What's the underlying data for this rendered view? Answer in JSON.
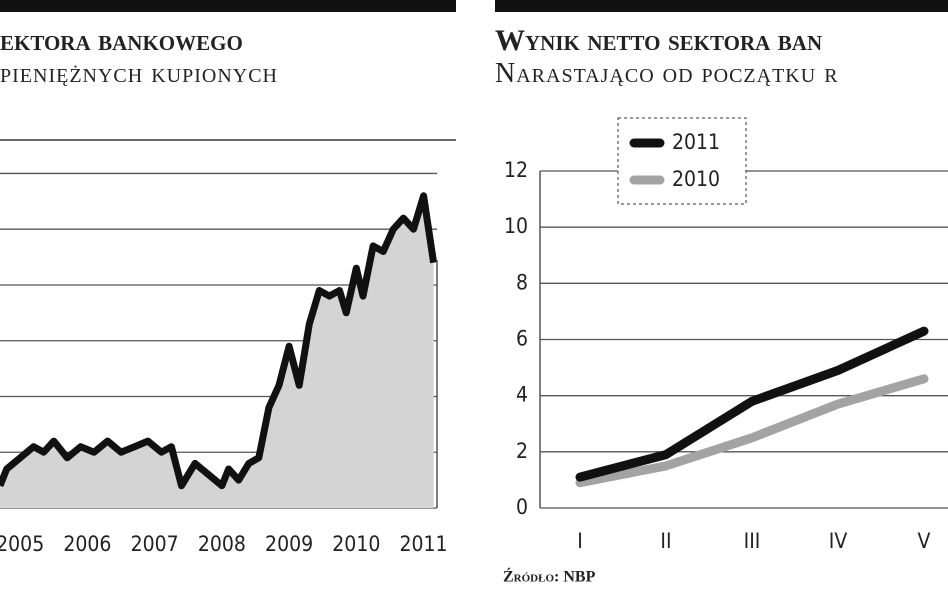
{
  "chart_data": [
    {
      "type": "area",
      "title": "ektora bankowego",
      "subtitle": "pieniężnych kupionych",
      "x": [
        2004.7,
        2004.8,
        2005.0,
        2005.2,
        2005.35,
        2005.5,
        2005.7,
        2005.9,
        2006.1,
        2006.3,
        2006.5,
        2006.7,
        2006.9,
        2007.1,
        2007.25,
        2007.4,
        2007.6,
        2007.8,
        2008.0,
        2008.1,
        2008.25,
        2008.4,
        2008.55,
        2008.7,
        2008.85,
        2009.0,
        2009.15,
        2009.3,
        2009.45,
        2009.6,
        2009.75,
        2009.85,
        2010.0,
        2010.1,
        2010.25,
        2010.4,
        2010.55,
        2010.7,
        2010.85,
        2011.0,
        2011.15
      ],
      "values": [
        0.4,
        0.7,
        0.9,
        1.1,
        1.0,
        1.2,
        0.9,
        1.1,
        1.0,
        1.2,
        1.0,
        1.1,
        1.2,
        1.0,
        1.1,
        0.4,
        0.8,
        0.6,
        0.4,
        0.7,
        0.5,
        0.8,
        0.9,
        1.8,
        2.2,
        2.9,
        2.2,
        3.3,
        3.9,
        3.8,
        3.9,
        3.5,
        4.3,
        3.8,
        4.7,
        4.6,
        5.0,
        5.2,
        5.0,
        5.6,
        4.4
      ],
      "color": "#111111",
      "fill": "#d4d4d4",
      "xlim": [
        2004.7,
        2011.2
      ],
      "xticks": [
        2005,
        2006,
        2007,
        2008,
        2009,
        2010,
        2011
      ],
      "ylim": [
        0,
        6.6
      ],
      "yticks": [
        0,
        1,
        2,
        3,
        4,
        5,
        6
      ],
      "grid": true,
      "ytick_labels": false
    },
    {
      "type": "line",
      "title": "Wynik netto sektora ban",
      "subtitle": "Narastająco od początku r",
      "categories": [
        "I",
        "II",
        "III",
        "IV",
        "V"
      ],
      "series": [
        {
          "name": "2011",
          "color": "#111111",
          "values": [
            1.1,
            1.9,
            3.8,
            4.9,
            6.3
          ]
        },
        {
          "name": "2010",
          "color": "#a3a3a3",
          "values": [
            0.9,
            1.5,
            2.5,
            3.7,
            4.6
          ]
        }
      ],
      "ylim": [
        0,
        12
      ],
      "yticks": [
        0,
        2,
        4,
        6,
        8,
        10,
        12
      ],
      "grid": true,
      "legend": "top-left",
      "source": "Źródło: NBP"
    }
  ]
}
